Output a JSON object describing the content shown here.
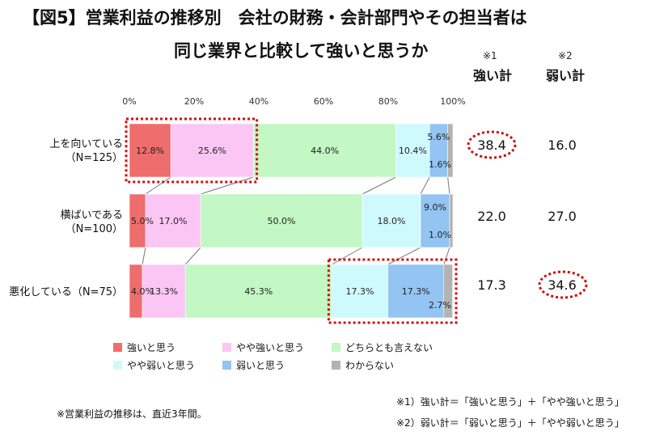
{
  "title_line1": "【図5】営業利益の推移別　会社の財務・会計部門やその担当者は",
  "title_line2": "同じ業界と比較して強いと思うか",
  "columns": [
    {
      "note": "※1",
      "head": "強い計"
    },
    {
      "note": "※2",
      "head": "弱い計"
    }
  ],
  "rows": [
    {
      "label1": "上を向いている",
      "label2": "（N=125）",
      "strong_total": "38.4",
      "weak_total": "16.0"
    },
    {
      "label1": "横ばいである",
      "label2": "（N=100）",
      "strong_total": "22.0",
      "weak_total": "27.0"
    },
    {
      "label1": "悪化している（N=75）",
      "label2": "",
      "strong_total": "17.3",
      "weak_total": "34.6"
    }
  ],
  "legend": [
    {
      "label": "強いと思う",
      "color": "#ee6d6d"
    },
    {
      "label": "やや強いと思う",
      "color": "#fbc6f4"
    },
    {
      "label": "どちらとも言えない",
      "color": "#c3f7c3"
    },
    {
      "label": "やや弱いと思う",
      "color": "#cffafd"
    },
    {
      "label": "弱いと思う",
      "color": "#93c4f2"
    },
    {
      "label": "わからない",
      "color": "#b3b3b3"
    }
  ],
  "footnote_left": "※営業利益の推移は、直近3年間。",
  "footnote_right1": "※1）強い計＝「強いと思う」＋「やや強いと思う」",
  "footnote_right2": "※2）弱い計＝「弱いと思う」＋「やや弱いと思う」",
  "highlight_color": "#cc1111",
  "chart_data": {
    "type": "bar",
    "orientation": "horizontal-stacked-100",
    "categories": [
      "上を向いている（N=125）",
      "横ばいである（N=100）",
      "悪化している（N=75）"
    ],
    "xlim": [
      0,
      100
    ],
    "tick_labels": [
      "0%",
      "20%",
      "40%",
      "60%",
      "80%",
      "100%"
    ],
    "series": [
      {
        "name": "強いと思う",
        "values": [
          12.8,
          5.0,
          4.0
        ]
      },
      {
        "name": "やや強いと思う",
        "values": [
          25.6,
          17.0,
          13.3
        ]
      },
      {
        "name": "どちらとも言えない",
        "values": [
          44.0,
          50.0,
          45.3
        ]
      },
      {
        "name": "やや弱いと思う",
        "values": [
          10.4,
          18.0,
          17.3
        ]
      },
      {
        "name": "弱いと思う",
        "values": [
          5.6,
          9.0,
          17.3
        ]
      },
      {
        "name": "わからない",
        "values": [
          1.6,
          1.0,
          2.7
        ]
      }
    ],
    "data_labels": [
      [
        "12.8%",
        "25.6%",
        "44.0%",
        "10.4%",
        "5.6%",
        "1.6%"
      ],
      [
        "5.0%",
        "17.0%",
        "50.0%",
        "18.0%",
        "9.0%",
        "1.0%"
      ],
      [
        "4.0%",
        "13.3%",
        "45.3%",
        "17.3%",
        "17.3%",
        "2.7%"
      ]
    ],
    "legend_position": "bottom",
    "grid": false
  }
}
